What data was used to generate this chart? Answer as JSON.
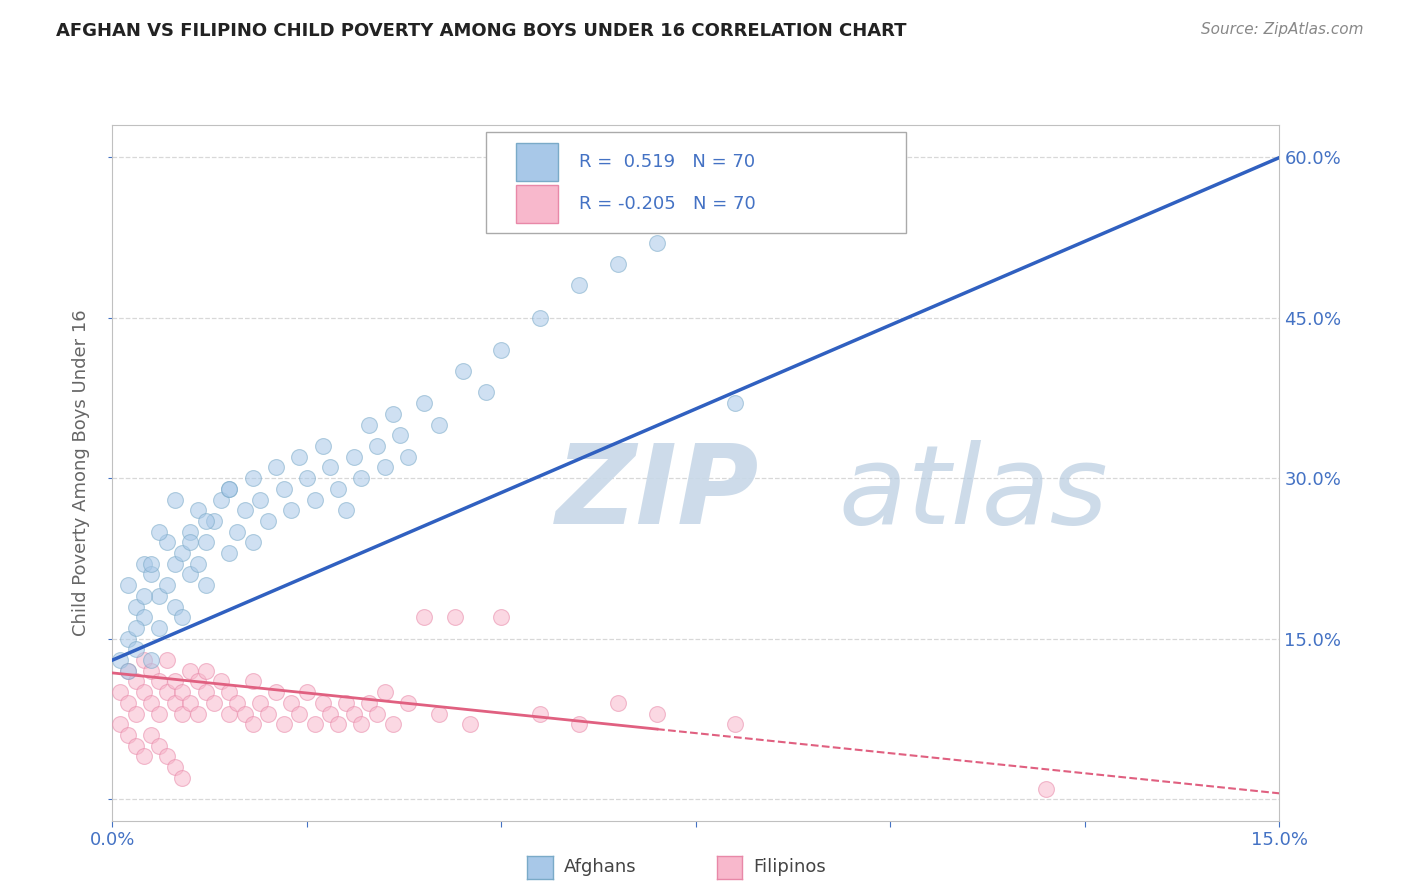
{
  "title": "AFGHAN VS FILIPINO CHILD POVERTY AMONG BOYS UNDER 16 CORRELATION CHART",
  "source": "Source: ZipAtlas.com",
  "ylabel": "Child Poverty Among Boys Under 16",
  "x_min": 0.0,
  "x_max": 0.15,
  "y_min": -0.02,
  "y_max": 0.63,
  "x_ticks": [
    0.0,
    0.025,
    0.05,
    0.075,
    0.1,
    0.125,
    0.15
  ],
  "y_ticks": [
    0.0,
    0.15,
    0.3,
    0.45,
    0.6
  ],
  "afghan_R": 0.519,
  "afghan_N": 70,
  "filipino_R": -0.205,
  "filipino_N": 70,
  "afghan_color": "#a8c8e8",
  "afghan_edge_color": "#7aaac8",
  "filipino_color": "#f8b8cc",
  "filipino_edge_color": "#e888a8",
  "afghan_line_color": "#3060c0",
  "filipino_line_color": "#e06080",
  "watermark_zip_color": "#c8d8e8",
  "watermark_atlas_color": "#b8cce0",
  "background_color": "#ffffff",
  "grid_color": "#d8d8d8",
  "scatter_alpha": 0.55,
  "marker_size": 130,
  "legend_R_color": "#4472c4",
  "legend_N_color": "#4472c4",
  "tick_color": "#4472c4",
  "afghan_x": [
    0.001,
    0.002,
    0.002,
    0.003,
    0.003,
    0.004,
    0.004,
    0.005,
    0.005,
    0.006,
    0.006,
    0.007,
    0.007,
    0.008,
    0.008,
    0.009,
    0.009,
    0.01,
    0.01,
    0.011,
    0.011,
    0.012,
    0.012,
    0.013,
    0.014,
    0.015,
    0.015,
    0.016,
    0.017,
    0.018,
    0.018,
    0.019,
    0.02,
    0.021,
    0.022,
    0.023,
    0.024,
    0.025,
    0.026,
    0.027,
    0.028,
    0.029,
    0.03,
    0.031,
    0.032,
    0.033,
    0.034,
    0.035,
    0.036,
    0.037,
    0.038,
    0.04,
    0.042,
    0.045,
    0.048,
    0.05,
    0.055,
    0.06,
    0.065,
    0.07,
    0.002,
    0.003,
    0.004,
    0.005,
    0.006,
    0.008,
    0.01,
    0.012,
    0.015,
    0.08
  ],
  "afghan_y": [
    0.13,
    0.2,
    0.15,
    0.14,
    0.18,
    0.22,
    0.17,
    0.13,
    0.21,
    0.19,
    0.16,
    0.2,
    0.24,
    0.18,
    0.22,
    0.23,
    0.17,
    0.21,
    0.25,
    0.22,
    0.27,
    0.24,
    0.2,
    0.26,
    0.28,
    0.23,
    0.29,
    0.25,
    0.27,
    0.24,
    0.3,
    0.28,
    0.26,
    0.31,
    0.29,
    0.27,
    0.32,
    0.3,
    0.28,
    0.33,
    0.31,
    0.29,
    0.27,
    0.32,
    0.3,
    0.35,
    0.33,
    0.31,
    0.36,
    0.34,
    0.32,
    0.37,
    0.35,
    0.4,
    0.38,
    0.42,
    0.45,
    0.48,
    0.5,
    0.52,
    0.12,
    0.16,
    0.19,
    0.22,
    0.25,
    0.28,
    0.24,
    0.26,
    0.29,
    0.37
  ],
  "filipino_x": [
    0.001,
    0.002,
    0.002,
    0.003,
    0.003,
    0.004,
    0.004,
    0.005,
    0.005,
    0.006,
    0.006,
    0.007,
    0.007,
    0.008,
    0.008,
    0.009,
    0.009,
    0.01,
    0.01,
    0.011,
    0.011,
    0.012,
    0.012,
    0.013,
    0.014,
    0.015,
    0.015,
    0.016,
    0.017,
    0.018,
    0.018,
    0.019,
    0.02,
    0.021,
    0.022,
    0.023,
    0.024,
    0.025,
    0.026,
    0.027,
    0.028,
    0.029,
    0.03,
    0.031,
    0.032,
    0.033,
    0.034,
    0.035,
    0.036,
    0.038,
    0.04,
    0.042,
    0.044,
    0.046,
    0.05,
    0.055,
    0.06,
    0.065,
    0.07,
    0.08,
    0.001,
    0.002,
    0.003,
    0.004,
    0.005,
    0.006,
    0.007,
    0.008,
    0.009,
    0.12
  ],
  "filipino_y": [
    0.1,
    0.12,
    0.09,
    0.11,
    0.08,
    0.13,
    0.1,
    0.12,
    0.09,
    0.11,
    0.08,
    0.1,
    0.13,
    0.09,
    0.11,
    0.08,
    0.1,
    0.12,
    0.09,
    0.11,
    0.08,
    0.1,
    0.12,
    0.09,
    0.11,
    0.08,
    0.1,
    0.09,
    0.08,
    0.11,
    0.07,
    0.09,
    0.08,
    0.1,
    0.07,
    0.09,
    0.08,
    0.1,
    0.07,
    0.09,
    0.08,
    0.07,
    0.09,
    0.08,
    0.07,
    0.09,
    0.08,
    0.1,
    0.07,
    0.09,
    0.17,
    0.08,
    0.17,
    0.07,
    0.17,
    0.08,
    0.07,
    0.09,
    0.08,
    0.07,
    0.07,
    0.06,
    0.05,
    0.04,
    0.06,
    0.05,
    0.04,
    0.03,
    0.02,
    0.01
  ]
}
